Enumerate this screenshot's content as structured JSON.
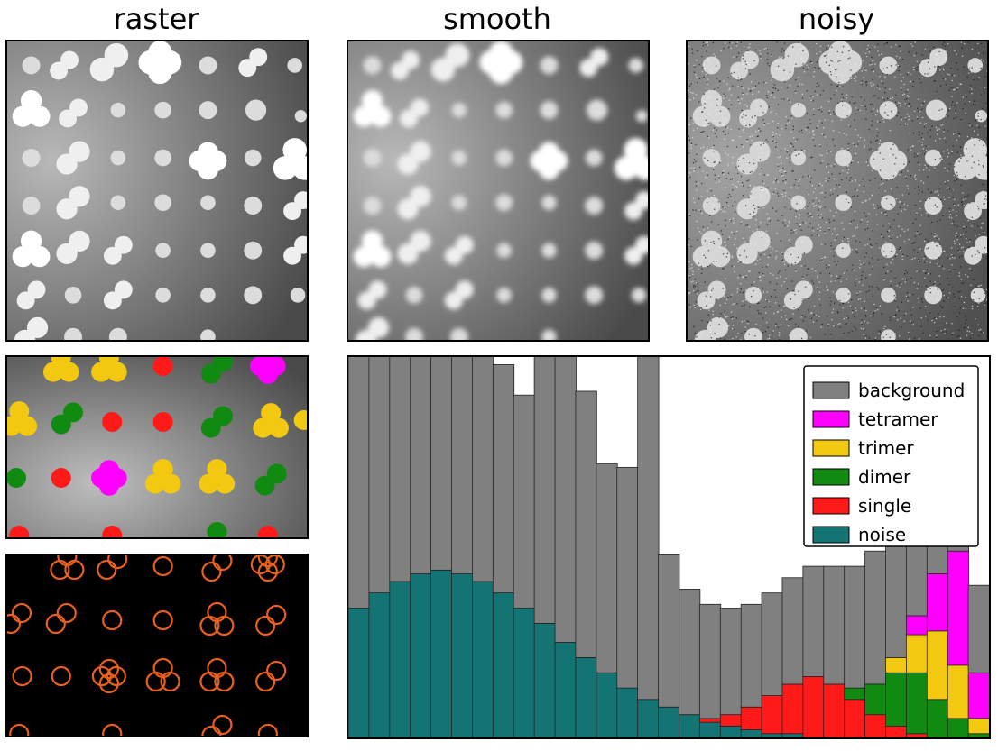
{
  "titles": {
    "raster": "raster",
    "smooth": "smooth",
    "noisy": "noisy"
  },
  "colors": {
    "background": "#808080",
    "tetramer": "#ff00ff",
    "trimer": "#f2c811",
    "dimer": "#118a11",
    "single": "#ff1a1a",
    "noise": "#147373"
  },
  "chart_data": {
    "type": "area",
    "legend_position": "top-right",
    "series": [
      {
        "name": "background",
        "values": [
          0.92,
          0.82,
          0.78,
          0.75,
          0.83,
          0.9,
          0.78,
          0.6,
          0.56,
          0.72,
          0.8,
          0.7,
          0.55,
          0.58,
          0.96,
          0.4,
          0.33,
          0.3,
          0.28,
          0.27,
          0.27,
          0.28,
          0.29,
          0.31,
          0.32,
          0.35,
          0.34,
          0.3,
          0.27,
          0.25,
          0.23
        ]
      },
      {
        "name": "tetramer",
        "values": [
          0,
          0,
          0,
          0,
          0,
          0,
          0,
          0,
          0,
          0,
          0,
          0,
          0,
          0,
          0,
          0,
          0,
          0,
          0,
          0,
          0,
          0,
          0,
          0,
          0,
          0,
          0,
          0.05,
          0.15,
          0.3,
          0.12
        ]
      },
      {
        "name": "trimer",
        "values": [
          0,
          0,
          0,
          0,
          0,
          0,
          0,
          0,
          0,
          0,
          0,
          0,
          0,
          0,
          0,
          0,
          0,
          0,
          0,
          0,
          0,
          0,
          0,
          0,
          0,
          0,
          0.04,
          0.1,
          0.18,
          0.14,
          0.04
        ]
      },
      {
        "name": "dimer",
        "values": [
          0,
          0,
          0,
          0,
          0,
          0,
          0,
          0,
          0,
          0,
          0,
          0,
          0,
          0,
          0,
          0,
          0,
          0,
          0,
          0,
          0,
          0,
          0,
          0,
          0.03,
          0.08,
          0.14,
          0.16,
          0.1,
          0.05,
          0.01
        ]
      },
      {
        "name": "single",
        "values": [
          0,
          0,
          0,
          0,
          0,
          0,
          0,
          0,
          0,
          0,
          0,
          0,
          0,
          0,
          0,
          0,
          0,
          0.01,
          0.03,
          0.06,
          0.1,
          0.13,
          0.16,
          0.14,
          0.1,
          0.06,
          0.03,
          0.01,
          0,
          0,
          0
        ]
      },
      {
        "name": "noise",
        "values": [
          0.34,
          0.38,
          0.41,
          0.43,
          0.44,
          0.43,
          0.41,
          0.38,
          0.34,
          0.3,
          0.25,
          0.21,
          0.17,
          0.13,
          0.1,
          0.08,
          0.06,
          0.04,
          0.03,
          0.02,
          0.01,
          0.01,
          0,
          0,
          0,
          0,
          0,
          0,
          0,
          0,
          0
        ]
      }
    ]
  }
}
